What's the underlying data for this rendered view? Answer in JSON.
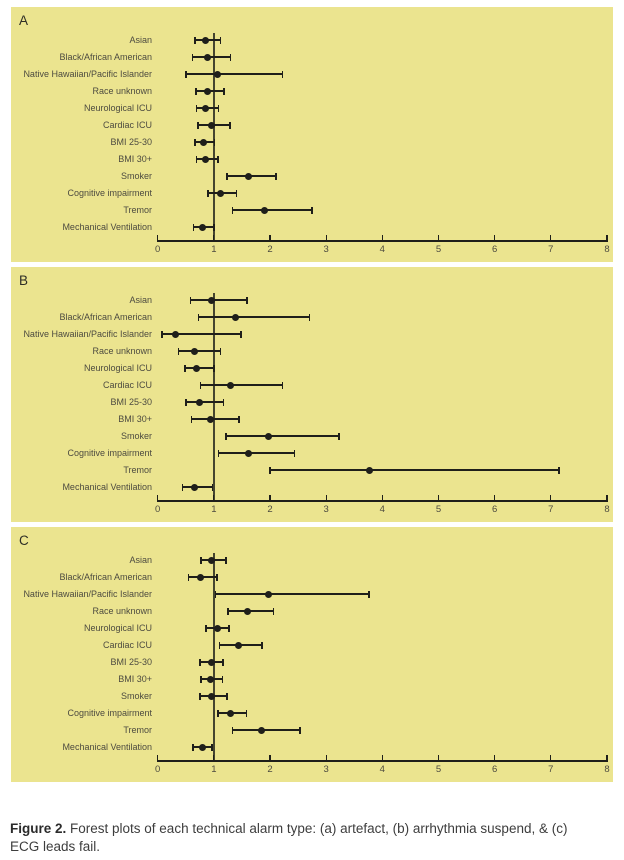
{
  "caption": {
    "label": "Figure 2.",
    "text": " Forest plots of each technical alarm type: (a) artefact, (b) arrhythmia suspend, & (c) ECG leads fail."
  },
  "chart_data": {
    "type": "scatter",
    "subtype": "forest-plot",
    "title": "Forest plots of each technical alarm type",
    "xlabel": "",
    "ylabel": "",
    "xlim": [
      0,
      8
    ],
    "x_ticks": [
      0,
      1,
      2,
      3,
      4,
      5,
      6,
      7,
      8
    ],
    "reference_line_x": 1,
    "grid": false,
    "legend": "none",
    "colors": {
      "panel_bg": "#ebe48f",
      "marker": "#1f1f1a",
      "refline": "#45452f",
      "label_text": "#4d4b40"
    },
    "panels": [
      {
        "panel_label": "A",
        "alarm_type": "artefact",
        "rows": [
          {
            "label": "Asian",
            "or": 0.85,
            "ci": [
              0.66,
              1.12
            ]
          },
          {
            "label": "Black/African American",
            "or": 0.89,
            "ci": [
              0.62,
              1.3
            ]
          },
          {
            "label": "Native Hawaiian/Pacific Islander",
            "or": 1.07,
            "ci": [
              0.5,
              2.22
            ]
          },
          {
            "label": "Race unknown",
            "or": 0.89,
            "ci": [
              0.68,
              1.18
            ]
          },
          {
            "label": "Neurological ICU",
            "or": 0.86,
            "ci": [
              0.69,
              1.08
            ]
          },
          {
            "label": "Cardiac ICU",
            "or": 0.95,
            "ci": [
              0.72,
              1.29
            ]
          },
          {
            "label": "BMI 25-30",
            "or": 0.81,
            "ci": [
              0.66,
              1.01
            ]
          },
          {
            "label": "BMI 30+",
            "or": 0.86,
            "ci": [
              0.69,
              1.07
            ]
          },
          {
            "label": "Smoker",
            "or": 1.61,
            "ci": [
              1.23,
              2.11
            ]
          },
          {
            "label": "Cognitive impairment",
            "or": 1.12,
            "ci": [
              0.9,
              1.4
            ]
          },
          {
            "label": "Tremor",
            "or": 1.91,
            "ci": [
              1.33,
              2.75
            ]
          },
          {
            "label": "Mechanical Ventilation",
            "or": 0.79,
            "ci": [
              0.64,
              1.0
            ]
          }
        ]
      },
      {
        "panel_label": "B",
        "alarm_type": "arrhythmia suspend",
        "rows": [
          {
            "label": "Asian",
            "or": 0.95,
            "ci": [
              0.58,
              1.59
            ]
          },
          {
            "label": "Black/African American",
            "or": 1.39,
            "ci": [
              0.73,
              2.7
            ]
          },
          {
            "label": "Native Hawaiian/Pacific Islander",
            "or": 0.31,
            "ci": [
              0.08,
              1.48
            ]
          },
          {
            "label": "Race unknown",
            "or": 0.65,
            "ci": [
              0.37,
              1.12
            ]
          },
          {
            "label": "Neurological ICU",
            "or": 0.69,
            "ci": [
              0.49,
              1.0
            ]
          },
          {
            "label": "Cardiac ICU",
            "or": 1.3,
            "ci": [
              0.76,
              2.22
            ]
          },
          {
            "label": "BMI 25-30",
            "or": 0.75,
            "ci": [
              0.5,
              1.17
            ]
          },
          {
            "label": "BMI 30+",
            "or": 0.94,
            "ci": [
              0.6,
              1.45
            ]
          },
          {
            "label": "Smoker",
            "or": 1.98,
            "ci": [
              1.22,
              3.23
            ]
          },
          {
            "label": "Cognitive impairment",
            "or": 1.62,
            "ci": [
              1.08,
              2.44
            ]
          },
          {
            "label": "Tremor",
            "or": 3.78,
            "ci": [
              2.0,
              7.15
            ]
          },
          {
            "label": "Mechanical Ventilation",
            "or": 0.65,
            "ci": [
              0.44,
              0.98
            ]
          }
        ]
      },
      {
        "panel_label": "C",
        "alarm_type": "ECG leads fail",
        "rows": [
          {
            "label": "Asian",
            "or": 0.95,
            "ci": [
              0.77,
              1.22
            ]
          },
          {
            "label": "Black/African American",
            "or": 0.77,
            "ci": [
              0.55,
              1.06
            ]
          },
          {
            "label": "Native Hawaiian/Pacific Islander",
            "or": 1.97,
            "ci": [
              1.03,
              3.76
            ]
          },
          {
            "label": "Race unknown",
            "or": 1.6,
            "ci": [
              1.25,
              2.06
            ]
          },
          {
            "label": "Neurological ICU",
            "or": 1.06,
            "ci": [
              0.86,
              1.27
            ]
          },
          {
            "label": "Cardiac ICU",
            "or": 1.43,
            "ci": [
              1.1,
              1.86
            ]
          },
          {
            "label": "BMI 25-30",
            "or": 0.95,
            "ci": [
              0.75,
              1.16
            ]
          },
          {
            "label": "BMI 30+",
            "or": 0.94,
            "ci": [
              0.77,
              1.15
            ]
          },
          {
            "label": "Smoker",
            "or": 0.95,
            "ci": [
              0.75,
              1.23
            ]
          },
          {
            "label": "Cognitive impairment",
            "or": 1.3,
            "ci": [
              1.07,
              1.58
            ]
          },
          {
            "label": "Tremor",
            "or": 1.84,
            "ci": [
              1.33,
              2.53
            ]
          },
          {
            "label": "Mechanical Ventilation",
            "or": 0.8,
            "ci": [
              0.63,
              0.97
            ]
          }
        ]
      }
    ]
  }
}
